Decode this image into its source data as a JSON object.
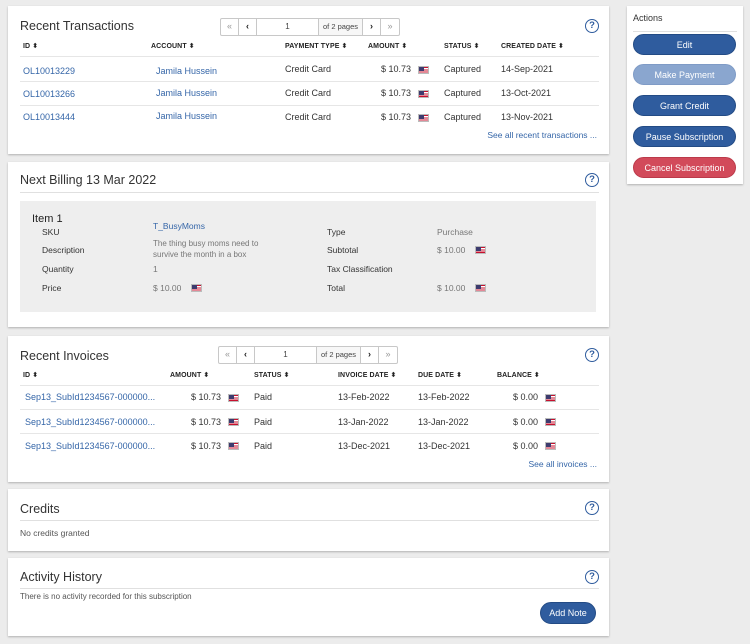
{
  "transactions": {
    "title": "Recent Transactions",
    "pager": {
      "first": "«",
      "prev": "‹",
      "page": "1",
      "of": "of 2 pages",
      "next": "›",
      "last": "»"
    },
    "headers": {
      "id": "ID",
      "account": "ACCOUNT",
      "payment_type": "PAYMENT TYPE",
      "amount": "AMOUNT",
      "status": "STATUS",
      "created": "CREATED DATE"
    },
    "rows": [
      {
        "id": "OL10013229",
        "account": "Jamila Hussein",
        "payment_type": "Credit Card",
        "amount": "$ 10.73",
        "status": "Captured",
        "created": "14-Sep-2021"
      },
      {
        "id": "OL10013266",
        "account": "Jamila Hussein",
        "payment_type": "Credit Card",
        "amount": "$ 10.73",
        "status": "Captured",
        "created": "13-Oct-2021"
      },
      {
        "id": "OL10013444",
        "account": "Jamila Hussein",
        "payment_type": "Credit Card",
        "amount": "$ 10.73",
        "status": "Captured",
        "created": "13-Nov-2021"
      }
    ],
    "see_all": "See all recent transactions ..."
  },
  "billing": {
    "title": "Next Billing 13 Mar 2022",
    "item_title": "Item 1",
    "sku_label": "SKU",
    "sku_value": "T_BusyMoms",
    "description_label": "Description",
    "description_value_line1": "The thing busy moms need to",
    "description_value_line2": "survive the month in a box",
    "quantity_label": "Quantity",
    "quantity_value": "1",
    "price_label": "Price",
    "price_value": "$ 10.00",
    "type_label": "Type",
    "type_value": "Purchase",
    "subtotal_label": "Subtotal",
    "subtotal_value": "$ 10.00",
    "tax_label": "Tax Classification",
    "total_label": "Total",
    "total_value": "$ 10.00"
  },
  "invoices": {
    "title": "Recent Invoices",
    "pager": {
      "first": "«",
      "prev": "‹",
      "page": "1",
      "of": "of 2 pages",
      "next": "›",
      "last": "»"
    },
    "headers": {
      "id": "ID",
      "amount": "AMOUNT",
      "status": "STATUS",
      "invoice_date": "INVOICE DATE",
      "due_date": "DUE DATE",
      "balance": "BALANCE"
    },
    "rows": [
      {
        "id": "Sep13_SubId1234567-000000...",
        "amount": "$ 10.73",
        "status": "Paid",
        "invoice_date": "13-Feb-2022",
        "due_date": "13-Feb-2022",
        "balance": "$ 0.00"
      },
      {
        "id": "Sep13_SubId1234567-000000...",
        "amount": "$ 10.73",
        "status": "Paid",
        "invoice_date": "13-Jan-2022",
        "due_date": "13-Jan-2022",
        "balance": "$ 0.00"
      },
      {
        "id": "Sep13_SubId1234567-000000...",
        "amount": "$ 10.73",
        "status": "Paid",
        "invoice_date": "13-Dec-2021",
        "due_date": "13-Dec-2021",
        "balance": "$ 0.00"
      }
    ],
    "see_all": "See all invoices ..."
  },
  "credits": {
    "title": "Credits",
    "empty": "No credits granted"
  },
  "activity": {
    "title": "Activity History",
    "empty": "There is no activity recorded for this subscription",
    "add_note": "Add Note"
  },
  "help_glyph": "?",
  "sort_glyph": "⬍",
  "actions": {
    "title": "Actions",
    "edit": "Edit",
    "make_payment": "Make Payment",
    "grant_credit": "Grant Credit",
    "pause": "Pause Subscription",
    "cancel": "Cancel Subscription"
  },
  "colors": {
    "primary": "#2f5c9e",
    "primary_disabled": "#8aa6cf",
    "danger": "#d24a5a",
    "link": "#3566a8"
  }
}
